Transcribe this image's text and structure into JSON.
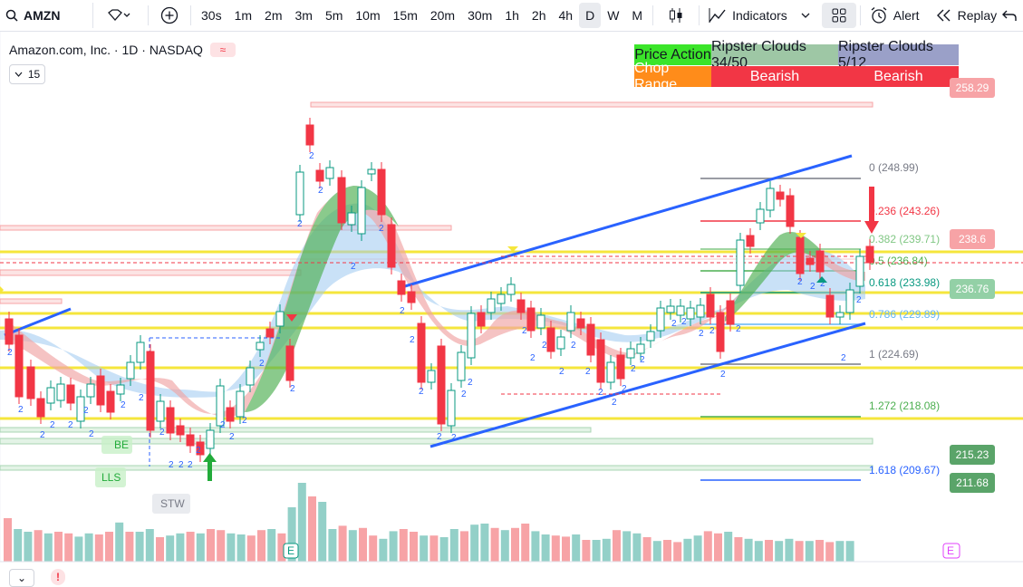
{
  "toolbar": {
    "symbol": "AMZN",
    "intervals": [
      "30s",
      "1m",
      "2m",
      "3m",
      "5m",
      "10m",
      "15m",
      "20m",
      "30m",
      "1h",
      "2h",
      "4h",
      "D",
      "W",
      "M"
    ],
    "active_interval": "D",
    "indicators_label": "Indicators",
    "alert_label": "Alert",
    "replay_label": "Replay"
  },
  "legend": {
    "title": "Amazon.com, Inc. · 1D · NASDAQ",
    "indicator_count": "15"
  },
  "table": {
    "headers": [
      "Price Action",
      "Ripster Clouds 34/50",
      "Ripster Clouds 5/12"
    ],
    "values": [
      "Chop Range",
      "Bearish",
      "Bearish"
    ],
    "colors": {
      "green": "#3be52a",
      "gray1": "#9ec7a5",
      "gray2": "#9aa0c8",
      "orange": "#ff8c1a",
      "red": "#f23645"
    }
  },
  "price_labels": [
    {
      "text": "258.29",
      "color": "#f7a3a6"
    },
    {
      "text": "238.6",
      "color": "#f7a3a6"
    },
    {
      "text": "236.76",
      "color": "#93d0a6"
    },
    {
      "text": "215.23",
      "color": "#5aa469"
    },
    {
      "text": "211.68",
      "color": "#5aa469"
    }
  ],
  "fib_labels": [
    "0 (248.99)",
    "0.236 (243.26)",
    "0.382 (239.71)",
    "0.5 (236.84)",
    "0.618 (233.98)",
    "0.786 (229.89)",
    "1 (224.69)",
    "1.272 (218.08)",
    "1.618 (209.67)"
  ],
  "chart_markers": {
    "be": "BE",
    "lls": "LLS",
    "stw": "STW",
    "earnings_left": "E",
    "earnings_right": "E"
  },
  "bottom": {
    "chevron": "⌄",
    "alert": "!"
  }
}
